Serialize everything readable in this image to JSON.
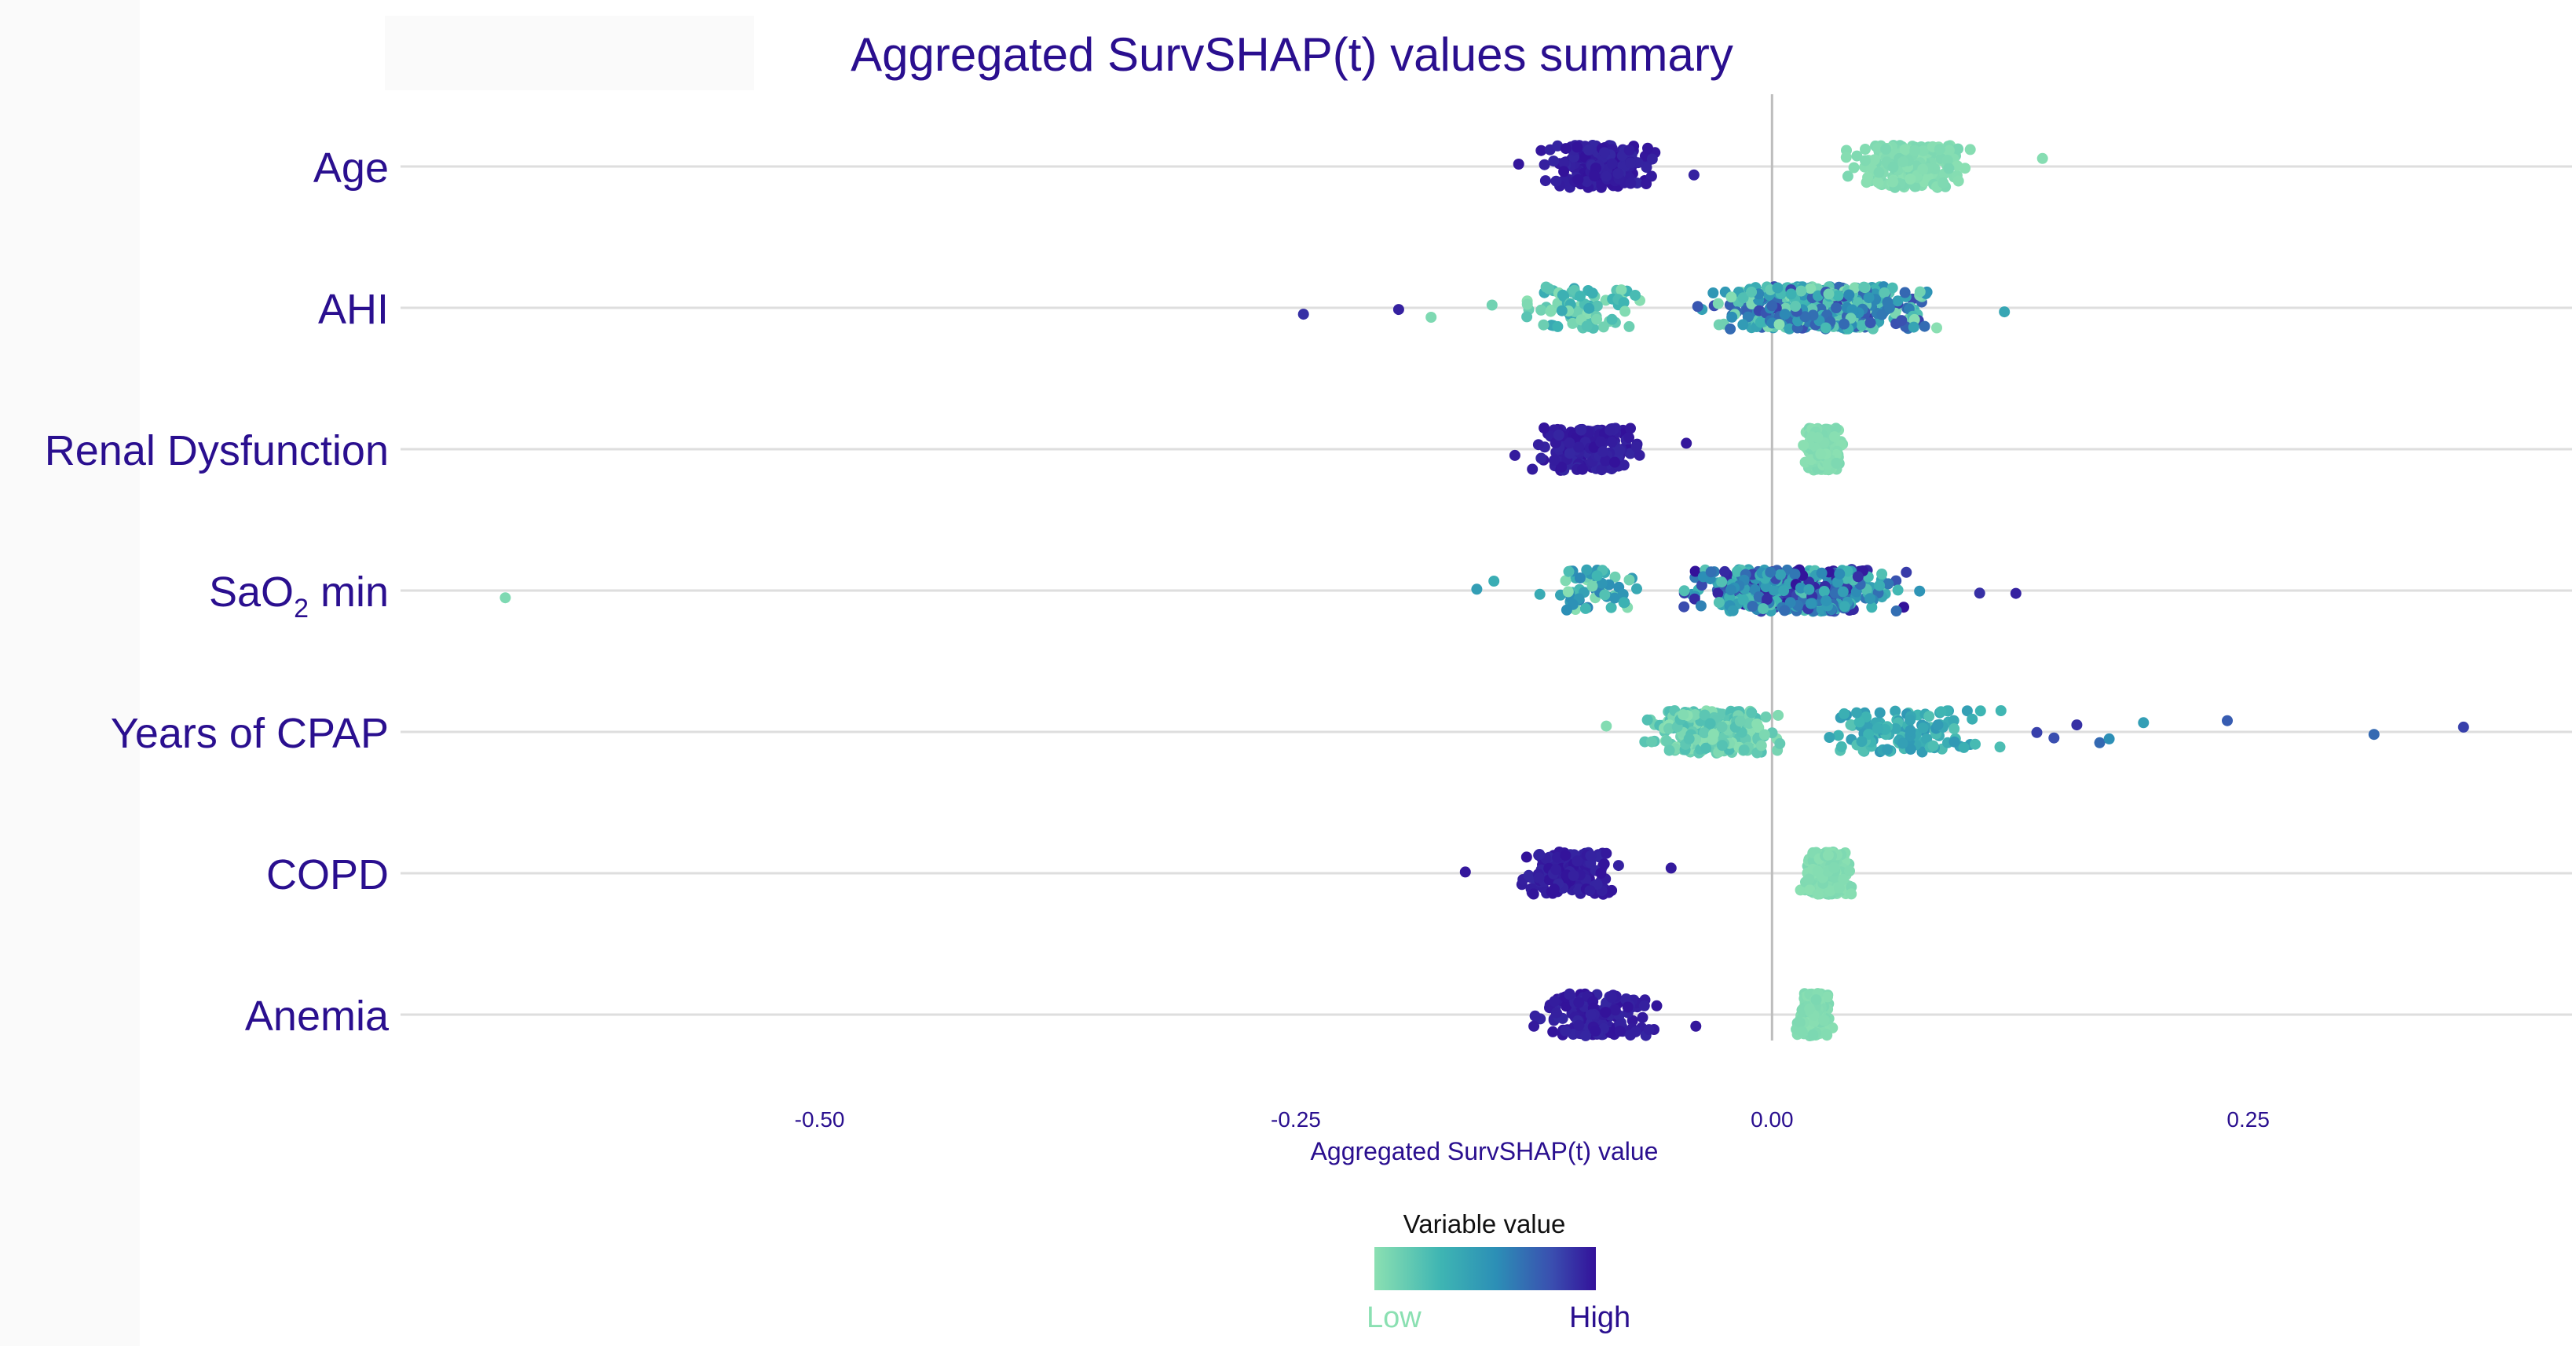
{
  "chart_data": {
    "type": "scatter",
    "title": "Aggregated SurvSHAP(t) values summary",
    "xlabel": "Aggregated SurvSHAP(t) value",
    "xlim": [
      -0.72,
      0.42
    ],
    "x_ticks": [
      -0.5,
      -0.25,
      0.0,
      0.25
    ],
    "x_tick_labels": [
      "-0.50",
      "-0.25",
      "0.00",
      "0.25"
    ],
    "grid": true,
    "legend": {
      "title": "Variable value",
      "low_label": "Low",
      "high_label": "High",
      "colors": [
        "#8be0b2",
        "#3eb5b3",
        "#2c8fb6",
        "#3a4fb0",
        "#33119a"
      ],
      "placement": "bottom-center"
    },
    "categories": [
      {
        "name": "Age",
        "clusters": [
          {
            "center": -0.092,
            "spread": 0.04,
            "count": 220,
            "color_range": [
              0.93,
              1.0
            ]
          },
          {
            "center": 0.072,
            "spread": 0.04,
            "count": 200,
            "color_range": [
              0.0,
              0.07
            ]
          }
        ],
        "points": [
          {
            "x": -0.133,
            "v": 0.98
          },
          {
            "x": -0.041,
            "v": 0.95
          },
          {
            "x": 0.142,
            "v": 0.02
          },
          {
            "x": 0.043,
            "v": 0.03
          }
        ]
      },
      {
        "name": "AHI",
        "clusters": [
          {
            "center": 0.025,
            "spread": 0.08,
            "count": 420,
            "color_range": [
              0.0,
              0.85
            ]
          },
          {
            "center": -0.1,
            "spread": 0.045,
            "count": 80,
            "color_range": [
              0.0,
              0.4
            ]
          }
        ],
        "points": [
          {
            "x": -0.246,
            "v": 0.9
          },
          {
            "x": -0.196,
            "v": 0.95
          },
          {
            "x": -0.179,
            "v": 0.05
          },
          {
            "x": -0.147,
            "v": 0.1
          },
          {
            "x": 0.122,
            "v": 0.4
          }
        ]
      },
      {
        "name": "Renal Dysfunction",
        "clusters": [
          {
            "center": -0.097,
            "spread": 0.036,
            "count": 180,
            "color_range": [
              0.93,
              1.0
            ]
          },
          {
            "center": 0.027,
            "spread": 0.013,
            "count": 220,
            "color_range": [
              0.0,
              0.06
            ]
          }
        ],
        "points": [
          {
            "x": -0.135,
            "v": 0.97
          },
          {
            "x": -0.045,
            "v": 0.98
          }
        ]
      },
      {
        "name": "SaO2 min",
        "sub": "2",
        "clusters": [
          {
            "center": 0.01,
            "spread": 0.075,
            "count": 430,
            "color_range": [
              0.2,
              1.0
            ]
          },
          {
            "center": -0.095,
            "spread": 0.04,
            "count": 60,
            "color_range": [
              0.0,
              0.6
            ]
          }
        ],
        "points": [
          {
            "x": -0.665,
            "v": 0.05
          },
          {
            "x": -0.155,
            "v": 0.45
          },
          {
            "x": -0.146,
            "v": 0.35
          },
          {
            "x": 0.109,
            "v": 0.9
          },
          {
            "x": 0.128,
            "v": 0.95
          }
        ]
      },
      {
        "name": "Years of CPAP",
        "clusters": [
          {
            "center": -0.03,
            "spread": 0.045,
            "count": 320,
            "color_range": [
              0.0,
              0.25
            ]
          },
          {
            "center": 0.07,
            "spread": 0.06,
            "count": 120,
            "color_range": [
              0.2,
              0.5
            ]
          }
        ],
        "points": [
          {
            "x": 0.148,
            "v": 0.8
          },
          {
            "x": 0.16,
            "v": 0.9
          },
          {
            "x": 0.172,
            "v": 0.7
          },
          {
            "x": 0.177,
            "v": 0.55
          },
          {
            "x": 0.195,
            "v": 0.45
          },
          {
            "x": 0.239,
            "v": 0.75
          },
          {
            "x": 0.316,
            "v": 0.7
          },
          {
            "x": 0.363,
            "v": 0.85
          },
          {
            "x": -0.087,
            "v": 0.03
          },
          {
            "x": 0.139,
            "v": 0.85
          }
        ]
      },
      {
        "name": "COPD",
        "clusters": [
          {
            "center": -0.106,
            "spread": 0.038,
            "count": 170,
            "color_range": [
              0.93,
              1.0
            ]
          },
          {
            "center": 0.029,
            "spread": 0.016,
            "count": 220,
            "color_range": [
              0.0,
              0.06
            ]
          }
        ],
        "points": [
          {
            "x": -0.161,
            "v": 0.98
          },
          {
            "x": -0.053,
            "v": 0.97
          }
        ]
      },
      {
        "name": "Anemia",
        "clusters": [
          {
            "center": -0.092,
            "spread": 0.038,
            "count": 170,
            "color_range": [
              0.93,
              1.0
            ]
          },
          {
            "center": 0.023,
            "spread": 0.012,
            "count": 220,
            "color_range": [
              0.0,
              0.06
            ]
          }
        ],
        "points": [
          {
            "x": -0.125,
            "v": 0.97
          },
          {
            "x": -0.04,
            "v": 0.98
          }
        ]
      }
    ]
  }
}
